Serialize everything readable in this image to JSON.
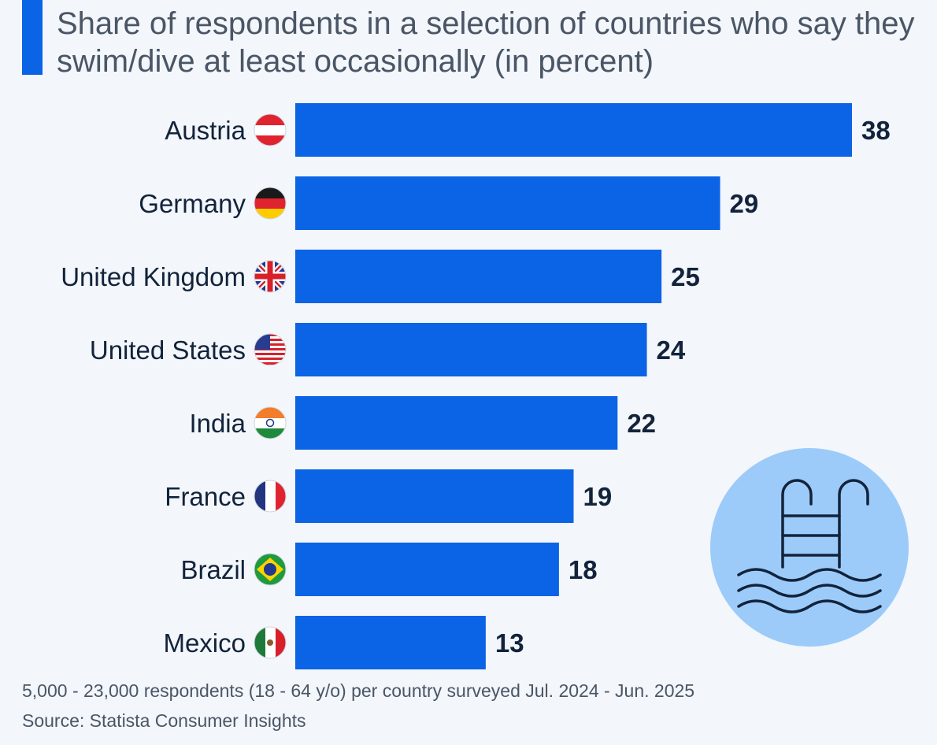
{
  "chart_data": {
    "type": "bar",
    "orientation": "horizontal",
    "title": "Share of respondents in a selection of countries who say they swim/dive at least occasionally (in percent)",
    "categories": [
      "Austria",
      "Germany",
      "United Kingdom",
      "United States",
      "India",
      "France",
      "Brazil",
      "Mexico"
    ],
    "values": [
      38,
      29,
      25,
      24,
      22,
      19,
      18,
      13
    ],
    "flags": [
      "austria-flag-icon",
      "germany-flag-icon",
      "uk-flag-icon",
      "usa-flag-icon",
      "india-flag-icon",
      "france-flag-icon",
      "brazil-flag-icon",
      "mexico-flag-icon"
    ],
    "xlim": [
      0,
      38
    ],
    "grid": false,
    "data_labels": true,
    "bar_color": "#0b63e5"
  },
  "footer": {
    "note": "5,000 - 23,000 respondents (18 - 64 y/o) per country surveyed Jul. 2024 - Jun. 2025",
    "source": "Source: Statista Consumer Insights"
  },
  "decoration": {
    "icon": "swimming-pool-icon",
    "circle_color": "#9ccbfa"
  }
}
